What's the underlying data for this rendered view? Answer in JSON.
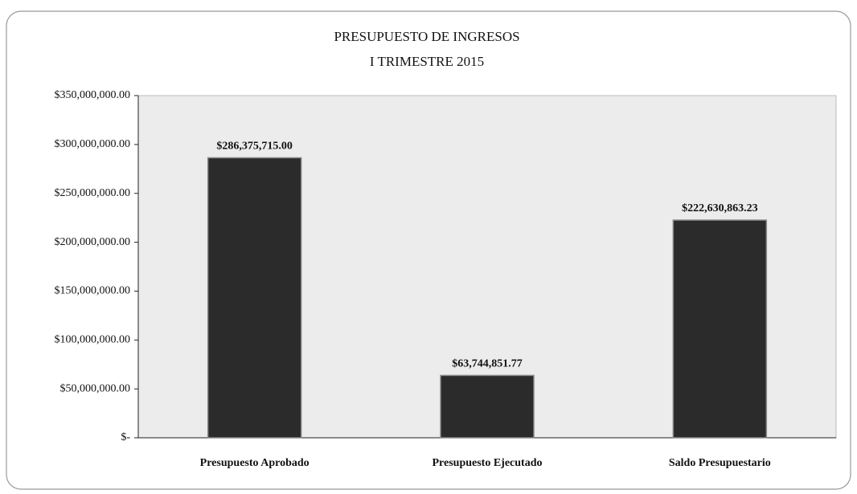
{
  "chart_data": {
    "type": "bar",
    "title": "PRESUPUESTO DE INGRESOS",
    "subtitle": "I TRIMESTRE 2015",
    "categories": [
      "Presupuesto Aprobado",
      "Presupuesto Ejecutado",
      "Saldo Presupuestario"
    ],
    "values": [
      286375715.0,
      63744851.77,
      222630863.23
    ],
    "value_labels": [
      "$286,375,715.00",
      "$63,744,851.77",
      "$222,630,863.23"
    ],
    "color": "#2b2b2b",
    "ylim": [
      0,
      350000000
    ],
    "yticks": [
      {
        "value": 0,
        "label": "$-"
      },
      {
        "value": 50000000,
        "label": "$50,000,000.00"
      },
      {
        "value": 100000000,
        "label": "$100,000,000.00"
      },
      {
        "value": 150000000,
        "label": "$150,000,000.00"
      },
      {
        "value": 200000000,
        "label": "$200,000,000.00"
      },
      {
        "value": 250000000,
        "label": "$250,000,000.00"
      },
      {
        "value": 300000000,
        "label": "$300,000,000.00"
      },
      {
        "value": 350000000,
        "label": "$350,000,000.00"
      }
    ],
    "grid": false
  }
}
